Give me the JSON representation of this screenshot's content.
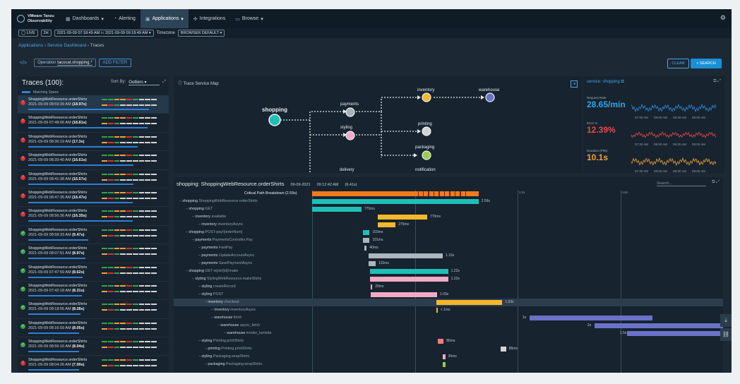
{
  "nav": {
    "brand_line1": "VMware Tanzu",
    "brand_line2": "Observability",
    "items": [
      "Dashboards",
      "Alerting",
      "Applications",
      "Integrations",
      "Browse"
    ]
  },
  "timebar": {
    "live": "LIVE",
    "range": "2H",
    "time_from": "2021-09-09 07:18:49 AM",
    "to": "to",
    "time_to": "2021-09-09 09:18:49 AM",
    "tz_label": "Timezone",
    "tz_value": "BROWSER DEFAULT"
  },
  "breadcrumb": {
    "a": "Applications",
    "b": "Service Dashboard",
    "c": "Traces",
    "sep": " › "
  },
  "query": {
    "label": "Operation",
    "value": "tacocat.shopping.*",
    "add": "ADD FILTER",
    "clear": "CLEAR",
    "search": "SEARCH"
  },
  "traces": {
    "title": "Traces (100):",
    "sort_label": "Sort By:",
    "sort_value": "Outliers",
    "legend": "Matching Spans",
    "items": [
      {
        "name": "ShoppingWebResource.orderShirts",
        "date": "2021-09-09 08:59:39 AM",
        "dur": "(18.97s)",
        "status": "err",
        "bar": 0.95
      },
      {
        "name": "ShoppingWebResource.orderShirts",
        "date": "2021-09-09 07:48:06 AM",
        "dur": "(18.81s)",
        "status": "err",
        "bar": 0.94
      },
      {
        "name": "ShoppingWebResource.orderShirts",
        "date": "2021-09-09 08:36:19 AM",
        "dur": "(17.3s)",
        "status": "err",
        "bar": 0.86
      },
      {
        "name": "ShoppingWebResource.orderShirts",
        "date": "2021-09-09 08:39:40 AM",
        "dur": "(16.61s)",
        "status": "err",
        "bar": 0.83
      },
      {
        "name": "ShoppingWebResource.orderShirts",
        "date": "2021-09-09 08:41:38 AM",
        "dur": "(16.57s)",
        "status": "err",
        "bar": 0.83
      },
      {
        "name": "ShoppingWebResource.orderShirts",
        "date": "2021-09-09 08:47:35 AM",
        "dur": "(16.47s)",
        "status": "err",
        "bar": 0.82
      },
      {
        "name": "ShoppingWebResource.orderShirts",
        "date": "2021-09-09 08:56:36 AM",
        "dur": "(16.35s)",
        "status": "err",
        "bar": 0.82
      },
      {
        "name": "ShoppingWebResource.orderShirts",
        "date": "2021-09-09 08:58:33 AM",
        "dur": "(9.47s)",
        "status": "ok",
        "bar": 0.47
      },
      {
        "name": "ShoppingWebResource.orderShirts",
        "date": "2021-09-09 08:07:51 AM",
        "dur": "(8.97s)",
        "status": "ok",
        "bar": 0.45
      },
      {
        "name": "ShoppingWebResource.orderShirts",
        "date": "2021-09-09 07:47:59 AM",
        "dur": "(8.62s)",
        "status": "ok",
        "bar": 0.43
      },
      {
        "name": "ShoppingWebResource.orderShirts",
        "date": "2021-09-09 07:42:18 AM",
        "dur": "(8.31s)",
        "status": "ok",
        "bar": 0.42
      },
      {
        "name": "ShoppingWebResource.orderShirts",
        "date": "2021-09-09 08:18:55 AM",
        "dur": "(8.28s)",
        "status": "ok",
        "bar": 0.41
      },
      {
        "name": "ShoppingWebResource.orderShirts",
        "date": "2021-09-09 08:16:59 AM",
        "dur": "(8.05s)",
        "status": "ok",
        "bar": 0.4
      },
      {
        "name": "ShoppingWebResource.orderShirts",
        "date": "2021-09-09 08:56:16 AM",
        "dur": "(8.04s)",
        "status": "ok",
        "bar": 0.4
      },
      {
        "name": "ShoppingWebResource.orderShirts",
        "date": "2021-09-09 08:04:26 AM",
        "dur": "(7.99s)",
        "status": "err",
        "bar": 0.4
      }
    ]
  },
  "map": {
    "title": "Trace Service Map",
    "nodes": [
      "shopping",
      "payments",
      "styling",
      "inventory",
      "warehouse",
      "printing",
      "packaging",
      "delivery",
      "notification"
    ]
  },
  "service": {
    "title": "service: shopping",
    "rate_label": "Request Rate",
    "rate": "28.65/min",
    "err_label": "Error %",
    "err": "12.39%",
    "dur_label": "Duration (P95)",
    "dur": "10.1s",
    "spark_ticks": [
      "07:30 AM",
      "08:00 AM",
      "08:30 AM",
      "09:00 AM"
    ],
    "err_axis": [
      "10",
      "0"
    ],
    "dur_axis": [
      "15",
      "10"
    ]
  },
  "gantt": {
    "title": "shopping: ShoppingWebResource.orderShirts",
    "date": "09-09-2021",
    "time": "09:12:42 AM",
    "dur": "(6.41s)",
    "search": "Search...",
    "ticks": [
      "0",
      "1.6s",
      "3.2s",
      "4.8s",
      "6.4s"
    ],
    "rows": [
      {
        "indent": 0,
        "svc": "Critical Path Breakdown (2.59s)",
        "op": "",
        "start": 0,
        "len": 0.405,
        "color": "#f07a1e",
        "d": "",
        "cp": true
      },
      {
        "indent": 0,
        "svc": "shopping",
        "op": "ShoppingWebResource.orderShirts",
        "start": 0,
        "len": 0.405,
        "color": "#1fbfb8",
        "d": "2.59s"
      },
      {
        "indent": 1,
        "svc": "shopping",
        "op": "GET",
        "start": 0,
        "len": 0.12,
        "color": "#1fbfb8",
        "d": "770ms"
      },
      {
        "indent": 2,
        "svc": "inventory",
        "op": "available",
        "start": 0.16,
        "len": 0.12,
        "color": "#f5b82b",
        "d": "770ms"
      },
      {
        "indent": 3,
        "svc": "inventory",
        "op": "inventoryAsync",
        "start": 0.16,
        "len": 0.043,
        "color": "#f5b82b",
        "d": "275ms"
      },
      {
        "indent": 1,
        "svc": "shopping",
        "op": "POST-pay/{orderNum}",
        "start": 0.124,
        "len": 0.016,
        "color": "#1fbfb8",
        "d": "103ms"
      },
      {
        "indent": 2,
        "svc": "payments",
        "op": "PaymentsController.Pay",
        "start": 0.124,
        "len": 0.016,
        "color": "#aeb6bd",
        "d": "101ms"
      },
      {
        "indent": 3,
        "svc": "payments",
        "op": "FastPay",
        "start": 0.127,
        "len": 0.006,
        "color": "#aeb6bd",
        "d": "40ms"
      },
      {
        "indent": 3,
        "svc": "payments",
        "op": "UpdateAccountAsync",
        "start": 0.137,
        "len": 0.181,
        "color": "#aeb6bd",
        "d": "1.16s"
      },
      {
        "indent": 3,
        "svc": "payments",
        "op": "SavePaymentAsync",
        "start": 0.137,
        "len": 0.018,
        "color": "#aeb6bd",
        "d": "115ms"
      },
      {
        "indent": 1,
        "svc": "shopping",
        "op": "GET-style/{id}/make",
        "start": 0.141,
        "len": 0.19,
        "color": "#1fbfb8",
        "d": "1.22s"
      },
      {
        "indent": 2,
        "svc": "styling",
        "op": "StylingWebResource.makeShirts",
        "start": 0.141,
        "len": 0.19,
        "color": "#f2a9c6",
        "d": "1.22s"
      },
      {
        "indent": 3,
        "svc": "styling",
        "op": "createRecord",
        "start": 0.143,
        "len": 0.003,
        "color": "#f2a9c6",
        "d": "20ms"
      },
      {
        "indent": 3,
        "svc": "styling",
        "op": "POST",
        "start": 0.143,
        "len": 0.161,
        "color": "#f2a9c6",
        "d": "1.03s"
      },
      {
        "indent": 4,
        "svc": "inventory",
        "op": "checkout",
        "start": 0.302,
        "len": 0.161,
        "color": "#f5b82b",
        "d": "1.03s",
        "hl": true
      },
      {
        "indent": 5,
        "svc": "inventory",
        "op": "inventoryAsync",
        "start": 0.302,
        "len": 0.001,
        "color": "#f5b82b",
        "d": "< 1ms"
      },
      {
        "indent": 5,
        "svc": "warehouse",
        "op": "fetch",
        "start": 0.529,
        "len": 0.3,
        "color": "#6a72c8",
        "d": "1s",
        "dpre": true
      },
      {
        "indent": 6,
        "svc": "warehouse",
        "op": "async_fetch",
        "start": 0.687,
        "len": 0.313,
        "color": "#6a72c8",
        "d": "2s",
        "dpre": true
      },
      {
        "indent": 7,
        "svc": "warehouse",
        "op": "invoke_lambda",
        "start": 0.766,
        "len": 0.234,
        "color": "#6a72c8",
        "d": "1.5s",
        "dpre": true
      },
      {
        "indent": 3,
        "svc": "styling",
        "op": "Printing.printShirts",
        "start": 0.306,
        "len": 0.014,
        "color": "#f07b7b",
        "d": "86ms"
      },
      {
        "indent": 4,
        "svc": "printing",
        "op": "Printing.printShirts",
        "start": 0.459,
        "len": 0.013,
        "color": "#d4d4d4",
        "d": "86ms"
      },
      {
        "indent": 3,
        "svc": "styling",
        "op": "Packaging.wrapShirts",
        "start": 0.318,
        "len": 0.006,
        "color": "#f2a9c6",
        "d": "35ms"
      },
      {
        "indent": 4,
        "svc": "packaging",
        "op": "Packaging.wrapShirts",
        "start": 0.318,
        "len": 0.006,
        "color": "#9acd4a",
        "d": ""
      }
    ]
  }
}
